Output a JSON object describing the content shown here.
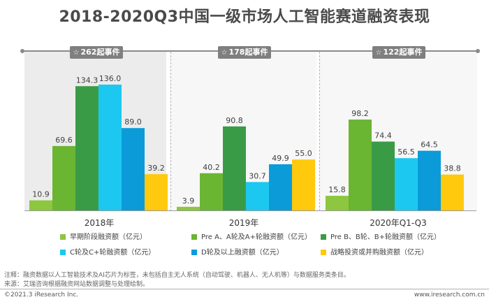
{
  "title": "2018-2020Q3中国一级市场人工智能赛道融资表现",
  "events": [
    {
      "label": "262起事件"
    },
    {
      "label": "178起事件"
    },
    {
      "label": "122起事件"
    }
  ],
  "chart_data": {
    "type": "bar",
    "title": "2018-2020Q3中国一级市场人工智能赛道融资表现",
    "categories": [
      "2018年",
      "2019年",
      "2020年Q1-Q3"
    ],
    "ylim": [
      0,
      140
    ],
    "grid": false,
    "legend_position": "bottom",
    "series": [
      {
        "name": "早期阶段融资额（亿元）",
        "color": "#8dc63f",
        "values": [
          10.9,
          3.9,
          15.8
        ]
      },
      {
        "name": "Pre A、A轮及A+轮融资额（亿元）",
        "color": "#6ab532",
        "values": [
          69.6,
          40.2,
          98.2
        ]
      },
      {
        "name": "Pre B、B轮、B+轮融资额（亿元）",
        "color": "#3a9b47",
        "values": [
          134.3,
          90.8,
          74.4
        ]
      },
      {
        "name": "C轮及C+轮融资额（亿元）",
        "color": "#1cc8f0",
        "values": [
          136.0,
          30.7,
          56.5
        ]
      },
      {
        "name": "D轮及以上融资额（亿元）",
        "color": "#0b9bd9",
        "values": [
          89.0,
          49.9,
          64.5
        ]
      },
      {
        "name": "战略投资或并购融资额（亿元）",
        "color": "#ffc90e",
        "values": [
          39.2,
          55.0,
          38.8
        ]
      }
    ]
  },
  "notes": [
    "注释：融资数据以人工智能技术及AI芯片为标签，未包括自主无人系统（自动驾驶、机器人、无人机等）与数据服务类条目。",
    "来源：艾瑞咨询根据融资网站数据调整与处理绘制。"
  ],
  "footer": {
    "copyright": "©2021.3 iResearch Inc.",
    "url": "www.iresearch.com.cn"
  }
}
